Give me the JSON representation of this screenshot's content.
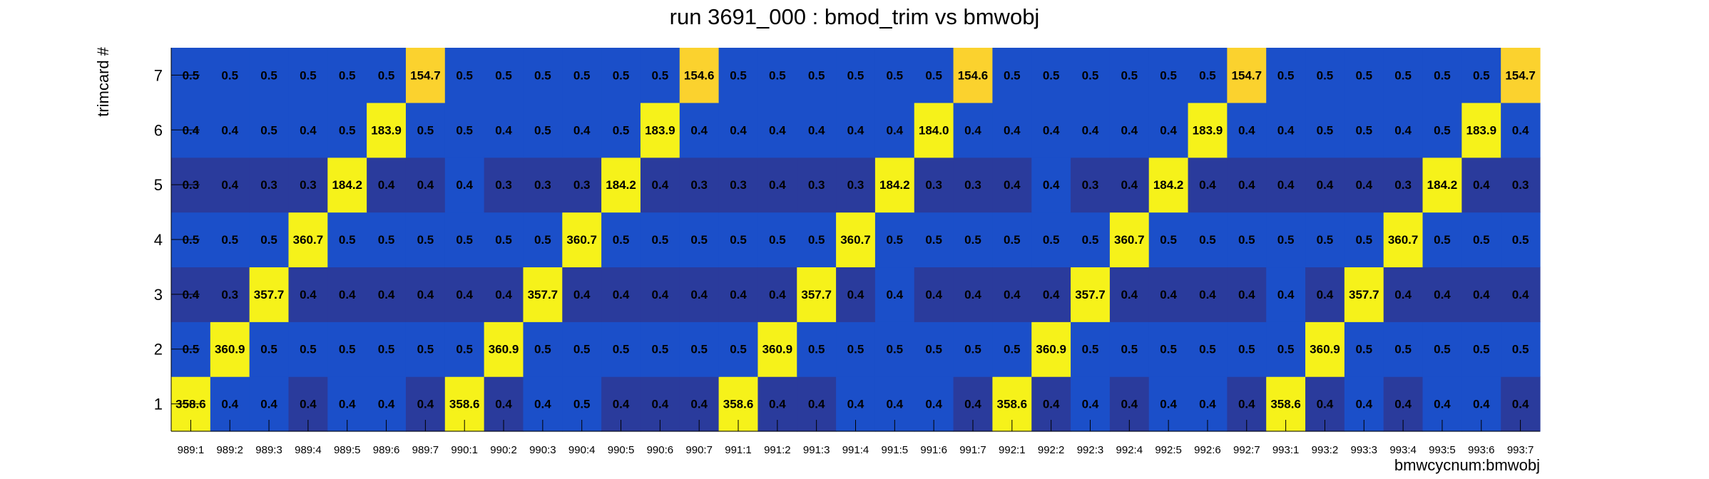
{
  "chart_data": {
    "type": "heatmap",
    "title": "run 3691_000 : bmod_trim vs bmwobj",
    "xlabel": "bmwcycnum:bmwobj",
    "ylabel": "trimcard #",
    "x_categories": [
      "989:1",
      "989:2",
      "989:3",
      "989:4",
      "989:5",
      "989:6",
      "989:7",
      "990:1",
      "990:2",
      "990:3",
      "990:4",
      "990:5",
      "990:6",
      "990:7",
      "991:1",
      "991:2",
      "991:3",
      "991:4",
      "991:5",
      "991:6",
      "991:7",
      "992:1",
      "992:2",
      "992:3",
      "992:4",
      "992:5",
      "992:6",
      "992:7",
      "993:1",
      "993:2",
      "993:3",
      "993:4",
      "993:5",
      "993:6",
      "993:7"
    ],
    "y_categories": [
      "1",
      "2",
      "3",
      "4",
      "5",
      "6",
      "7"
    ],
    "grid": false,
    "legend": "none",
    "colors": {
      "low_dark": "#2a3b9c",
      "low": "#1b4fc9",
      "high_yellow": "#f6f21a",
      "high_gold": "#fbd22e"
    },
    "values": [
      [
        "358.6",
        "0.4",
        "0.4",
        "0.4",
        "0.4",
        "0.4",
        "0.4",
        "358.6",
        "0.4",
        "0.4",
        "0.5",
        "0.4",
        "0.4",
        "0.4",
        "358.6",
        "0.4",
        "0.4",
        "0.4",
        "0.4",
        "0.4",
        "0.4",
        "358.6",
        "0.4",
        "0.4",
        "0.4",
        "0.4",
        "0.4",
        "0.4",
        "358.6",
        "0.4",
        "0.4",
        "0.4",
        "0.4",
        "0.4",
        "0.4"
      ],
      [
        "0.5",
        "360.9",
        "0.5",
        "0.5",
        "0.5",
        "0.5",
        "0.5",
        "0.5",
        "360.9",
        "0.5",
        "0.5",
        "0.5",
        "0.5",
        "0.5",
        "0.5",
        "360.9",
        "0.5",
        "0.5",
        "0.5",
        "0.5",
        "0.5",
        "0.5",
        "360.9",
        "0.5",
        "0.5",
        "0.5",
        "0.5",
        "0.5",
        "0.5",
        "360.9",
        "0.5",
        "0.5",
        "0.5",
        "0.5",
        "0.5"
      ],
      [
        "0.4",
        "0.3",
        "357.7",
        "0.4",
        "0.4",
        "0.4",
        "0.4",
        "0.4",
        "0.4",
        "357.7",
        "0.4",
        "0.4",
        "0.4",
        "0.4",
        "0.4",
        "0.4",
        "357.7",
        "0.4",
        "0.4",
        "0.4",
        "0.4",
        "0.4",
        "0.4",
        "357.7",
        "0.4",
        "0.4",
        "0.4",
        "0.4",
        "0.4",
        "0.4",
        "357.7",
        "0.4",
        "0.4",
        "0.4",
        "0.4"
      ],
      [
        "0.5",
        "0.5",
        "0.5",
        "360.7",
        "0.5",
        "0.5",
        "0.5",
        "0.5",
        "0.5",
        "0.5",
        "360.7",
        "0.5",
        "0.5",
        "0.5",
        "0.5",
        "0.5",
        "0.5",
        "360.7",
        "0.5",
        "0.5",
        "0.5",
        "0.5",
        "0.5",
        "0.5",
        "360.7",
        "0.5",
        "0.5",
        "0.5",
        "0.5",
        "0.5",
        "0.5",
        "360.7",
        "0.5",
        "0.5",
        "0.5"
      ],
      [
        "0.3",
        "0.4",
        "0.3",
        "0.3",
        "184.2",
        "0.4",
        "0.4",
        "0.4",
        "0.3",
        "0.3",
        "0.3",
        "184.2",
        "0.4",
        "0.3",
        "0.3",
        "0.4",
        "0.3",
        "0.3",
        "184.2",
        "0.3",
        "0.3",
        "0.4",
        "0.4",
        "0.3",
        "0.4",
        "184.2",
        "0.4",
        "0.4",
        "0.4",
        "0.4",
        "0.4",
        "0.3",
        "184.2",
        "0.4",
        "0.3"
      ],
      [
        "0.4",
        "0.4",
        "0.5",
        "0.4",
        "0.5",
        "183.9",
        "0.5",
        "0.5",
        "0.4",
        "0.5",
        "0.4",
        "0.5",
        "183.9",
        "0.4",
        "0.4",
        "0.4",
        "0.4",
        "0.4",
        "0.4",
        "184.0",
        "0.4",
        "0.4",
        "0.4",
        "0.4",
        "0.4",
        "0.4",
        "183.9",
        "0.4",
        "0.4",
        "0.5",
        "0.5",
        "0.4",
        "0.5",
        "183.9",
        "0.4"
      ],
      [
        "0.5",
        "0.5",
        "0.5",
        "0.5",
        "0.5",
        "0.5",
        "154.7",
        "0.5",
        "0.5",
        "0.5",
        "0.5",
        "0.5",
        "0.5",
        "154.6",
        "0.5",
        "0.5",
        "0.5",
        "0.5",
        "0.5",
        "0.5",
        "154.6",
        "0.5",
        "0.5",
        "0.5",
        "0.5",
        "0.5",
        "0.5",
        "154.7",
        "0.5",
        "0.5",
        "0.5",
        "0.5",
        "0.5",
        "0.5",
        "154.7"
      ]
    ],
    "cell_fill": [
      [
        "Y",
        "B",
        "B",
        "D",
        "B",
        "B",
        "D",
        "Y",
        "D",
        "B",
        "B",
        "D",
        "D",
        "D",
        "Y",
        "D",
        "D",
        "B",
        "B",
        "B",
        "D",
        "Y",
        "D",
        "B",
        "D",
        "B",
        "B",
        "D",
        "Y",
        "D",
        "B",
        "D",
        "B",
        "B",
        "D"
      ],
      [
        "B",
        "Y",
        "B",
        "B",
        "B",
        "B",
        "B",
        "B",
        "Y",
        "B",
        "B",
        "B",
        "B",
        "B",
        "B",
        "Y",
        "B",
        "B",
        "B",
        "B",
        "B",
        "B",
        "Y",
        "B",
        "B",
        "B",
        "B",
        "B",
        "B",
        "Y",
        "B",
        "B",
        "B",
        "B",
        "B"
      ],
      [
        "D",
        "D",
        "Y",
        "D",
        "D",
        "D",
        "D",
        "D",
        "D",
        "Y",
        "D",
        "D",
        "D",
        "D",
        "D",
        "D",
        "Y",
        "D",
        "B",
        "D",
        "D",
        "D",
        "D",
        "Y",
        "D",
        "D",
        "D",
        "D",
        "B",
        "D",
        "Y",
        "D",
        "D",
        "D",
        "D"
      ],
      [
        "B",
        "B",
        "B",
        "Y",
        "B",
        "B",
        "B",
        "B",
        "B",
        "B",
        "Y",
        "B",
        "B",
        "B",
        "B",
        "B",
        "B",
        "Y",
        "B",
        "B",
        "B",
        "B",
        "B",
        "B",
        "Y",
        "B",
        "B",
        "B",
        "B",
        "B",
        "B",
        "Y",
        "B",
        "B",
        "B"
      ],
      [
        "D",
        "D",
        "D",
        "D",
        "Y",
        "D",
        "D",
        "B",
        "D",
        "D",
        "D",
        "Y",
        "D",
        "D",
        "D",
        "D",
        "D",
        "D",
        "Y",
        "D",
        "D",
        "D",
        "B",
        "D",
        "D",
        "Y",
        "D",
        "D",
        "D",
        "D",
        "D",
        "D",
        "Y",
        "D",
        "D"
      ],
      [
        "B",
        "B",
        "B",
        "B",
        "B",
        "Y",
        "B",
        "B",
        "B",
        "B",
        "B",
        "B",
        "Y",
        "B",
        "B",
        "B",
        "B",
        "B",
        "B",
        "Y",
        "B",
        "B",
        "B",
        "B",
        "B",
        "B",
        "Y",
        "B",
        "B",
        "B",
        "B",
        "B",
        "B",
        "Y",
        "B"
      ],
      [
        "B",
        "B",
        "B",
        "B",
        "B",
        "B",
        "G",
        "B",
        "B",
        "B",
        "B",
        "B",
        "B",
        "G",
        "B",
        "B",
        "B",
        "B",
        "B",
        "B",
        "G",
        "B",
        "B",
        "B",
        "B",
        "B",
        "B",
        "G",
        "B",
        "B",
        "B",
        "B",
        "B",
        "B",
        "G"
      ]
    ]
  }
}
